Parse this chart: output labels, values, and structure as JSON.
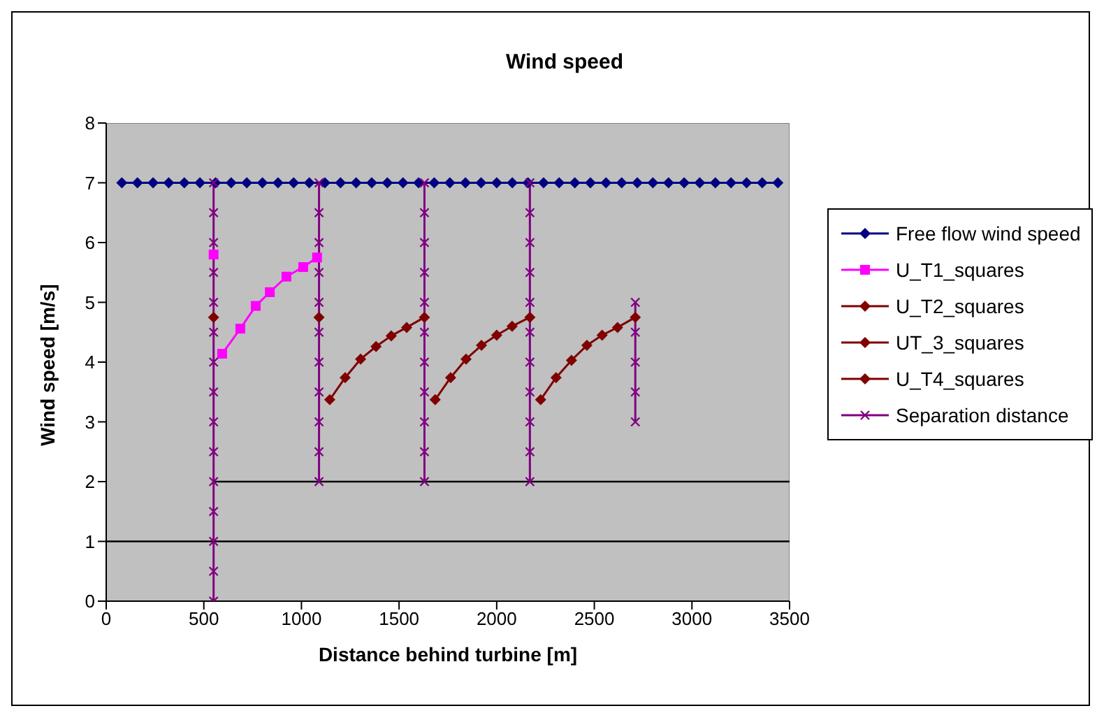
{
  "chart_data": {
    "type": "line",
    "title": "Wind speed",
    "xlabel": "Distance behind turbine [m]",
    "ylabel": "Wind speed [m/s]",
    "xlim": [
      0,
      3500
    ],
    "xticks": [
      0,
      500,
      1000,
      1500,
      2000,
      2500,
      3000,
      3500
    ],
    "ylim": [
      0,
      8
    ],
    "yticks": [
      0,
      1,
      2,
      3,
      4,
      5,
      6,
      7,
      8
    ],
    "grid": false,
    "legend": "right",
    "series": [
      {
        "name": "Free flow wind speed",
        "color": "#000080",
        "marker": "diamond",
        "x": [
          80,
          160,
          240,
          320,
          400,
          480,
          560,
          640,
          720,
          800,
          880,
          960,
          1040,
          1120,
          1200,
          1280,
          1360,
          1440,
          1520,
          1600,
          1680,
          1760,
          1840,
          1920,
          2000,
          2080,
          2160,
          2240,
          2320,
          2400,
          2480,
          2560,
          2640,
          2720,
          2800,
          2880,
          2960,
          3040,
          3120,
          3200,
          3280,
          3360,
          3440
        ],
        "values": [
          7,
          7,
          7,
          7,
          7,
          7,
          7,
          7,
          7,
          7,
          7,
          7,
          7,
          7,
          7,
          7,
          7,
          7,
          7,
          7,
          7,
          7,
          7,
          7,
          7,
          7,
          7,
          7,
          7,
          7,
          7,
          7,
          7,
          7,
          7,
          7,
          7,
          7,
          7,
          7,
          7,
          7,
          7
        ]
      },
      {
        "name": "U_T1_squares",
        "color": "#ff00ff",
        "marker": "square",
        "x": [
          550,
          570,
          594,
          687,
          766,
          838,
          923,
          1009,
          1080
        ],
        "values": [
          5.8,
          null,
          4.14,
          4.56,
          4.94,
          5.17,
          5.43,
          5.59,
          5.75
        ]
      },
      {
        "name": "U_T2_squares",
        "color": "#800000",
        "marker": "diamond",
        "x": [
          550,
          800,
          1090,
          1120,
          1145,
          1224,
          1303,
          1382,
          1460,
          1539,
          1630
        ],
        "values": [
          4.75,
          null,
          4.75,
          null,
          3.37,
          3.74,
          4.05,
          4.26,
          4.44,
          4.58,
          4.75
        ]
      },
      {
        "name": "UT_3_squares",
        "color": "#800000",
        "marker": "diamond",
        "x": [
          1685,
          1764,
          1843,
          1922,
          2000,
          2079,
          2170
        ],
        "values": [
          3.37,
          3.74,
          4.05,
          4.28,
          4.45,
          4.6,
          4.75
        ]
      },
      {
        "name": "U_T4_squares",
        "color": "#800000",
        "marker": "diamond",
        "x": [
          2225,
          2304,
          2383,
          2462,
          2540,
          2619,
          2710
        ],
        "values": [
          3.37,
          3.74,
          4.03,
          4.28,
          4.45,
          4.58,
          4.75
        ]
      },
      {
        "color": "#000000",
        "marker": "none",
        "x": [
          0,
          3500
        ],
        "values": [
          1,
          1
        ]
      },
      {
        "color": "#000000",
        "marker": "none",
        "x": [
          550,
          3500
        ],
        "values": [
          2,
          2
        ]
      },
      {
        "name": "Separation distance",
        "color": "#800080",
        "marker": "cross",
        "x": [
          550,
          550,
          550,
          550,
          550,
          550,
          550,
          550,
          550,
          550,
          550,
          550,
          550,
          550,
          550,
          800,
          1090,
          1090,
          1090,
          1090,
          1090,
          1090,
          1090,
          1090,
          1090,
          1090,
          1090,
          1300,
          1630,
          1630,
          1630,
          1630,
          1630,
          1630,
          1630,
          1630,
          1630,
          1630,
          1630,
          1900,
          2170,
          2170,
          2170,
          2170,
          2170,
          2170,
          2170,
          2170,
          2170,
          2170,
          2170,
          2400,
          2710,
          2710,
          2710,
          2710,
          2710
        ],
        "values": [
          0,
          0.5,
          1,
          1.5,
          2,
          2.5,
          3,
          3.5,
          4,
          4.5,
          5,
          5.5,
          6,
          6.5,
          7,
          null,
          2,
          2.5,
          3,
          3.5,
          4,
          4.5,
          5,
          5.5,
          6,
          6.5,
          7,
          null,
          2,
          2.5,
          3,
          3.5,
          4,
          4.5,
          5,
          5.5,
          6,
          6.5,
          7,
          null,
          2,
          2.5,
          3,
          3.5,
          4,
          4.5,
          5,
          5.5,
          6,
          6.5,
          7,
          null,
          3,
          3.5,
          4,
          4.5,
          5
        ]
      }
    ]
  }
}
